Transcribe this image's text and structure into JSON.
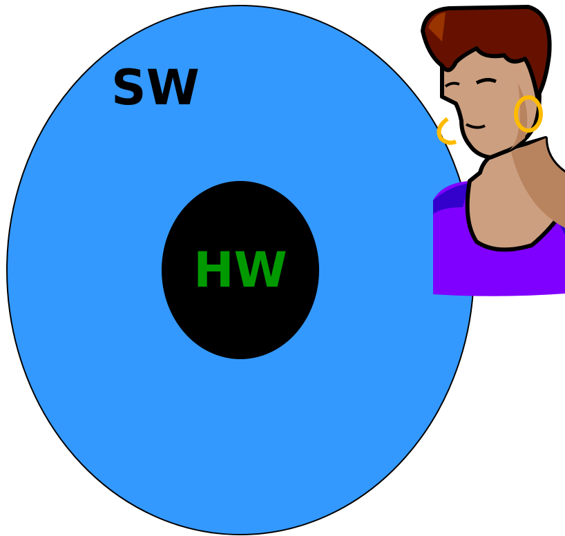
{
  "outer": {
    "label": "SW"
  },
  "inner": {
    "label": "HW"
  }
}
